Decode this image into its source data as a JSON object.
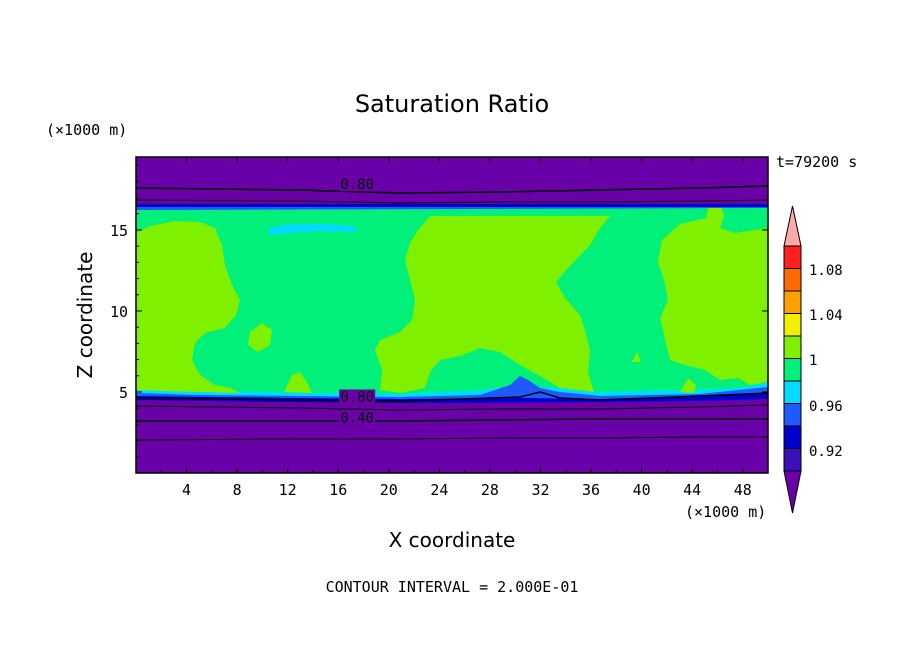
{
  "chart_data": {
    "type": "heatmap",
    "title": "Saturation Ratio",
    "xlabel": "X coordinate",
    "ylabel": "Z coordinate",
    "x_unit": "(×1000 m)",
    "y_unit": "(×1000 m)",
    "time_label": "t=79200 s",
    "footer": "CONTOUR INTERVAL = 2.000E-01",
    "xlim": [
      0,
      50
    ],
    "ylim": [
      0,
      19.5
    ],
    "x_ticks": [
      "4",
      "8",
      "12",
      "16",
      "20",
      "24",
      "28",
      "32",
      "36",
      "40",
      "44",
      "48"
    ],
    "y_ticks": [
      "5",
      "10",
      "15"
    ],
    "contour_labels": [
      {
        "text": "0.80",
        "x": 17.5,
        "y": 17.7
      },
      {
        "text": "0.80",
        "x": 17.5,
        "y": 4.6
      },
      {
        "text": "0.40",
        "x": 17.5,
        "y": 3.3
      }
    ],
    "colorbar": {
      "labels": [
        "1.08",
        "1.04",
        "1",
        "0.96",
        "0.92"
      ],
      "colors": [
        "#6a00a8",
        "#3a10b8",
        "#0000cc",
        "#1e5aff",
        "#00dcff",
        "#00f07a",
        "#7ef000",
        "#f0f000",
        "#ffa000",
        "#ff6a00",
        "#ff2020",
        "#ffaaaa"
      ]
    },
    "field_colors": {
      "low": "#6a00a8",
      "band_dark": "#0000cc",
      "band_mid": "#1e5aff",
      "band_cyan": "#00dcff",
      "supersat": "#00f07a",
      "subsat": "#7ef000"
    }
  }
}
